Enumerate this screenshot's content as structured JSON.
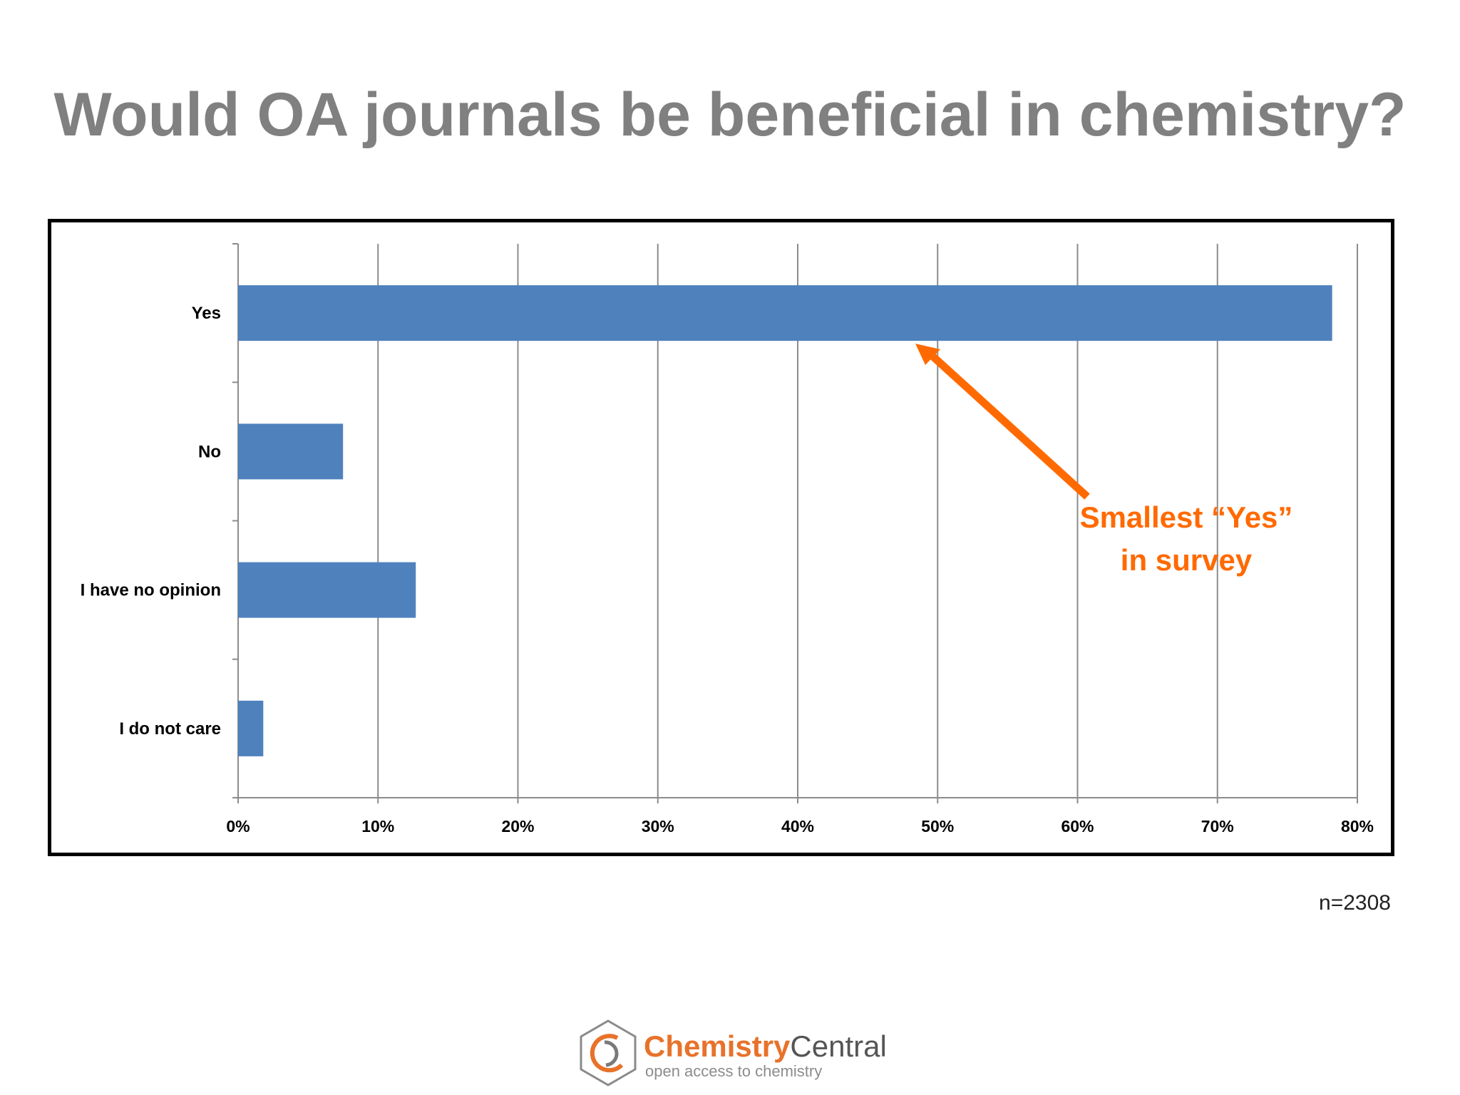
{
  "slide": {
    "title": "Would OA journals be beneficial in chemistry?",
    "sample_size": "n=2308"
  },
  "annotation": {
    "line1": "Smallest “Yes”",
    "line2": "in survey",
    "color": "#ff6a00"
  },
  "logo": {
    "name_part1": "Chemistry",
    "name_part2": "Central",
    "tagline": "open access to chemistry"
  },
  "chart_data": {
    "type": "bar",
    "orientation": "horizontal",
    "categories": [
      "Yes",
      "No",
      "I have no opinion",
      "I do not care"
    ],
    "values": [
      78.2,
      7.5,
      12.7,
      1.8
    ],
    "xlim": [
      0,
      80
    ],
    "x_ticks": [
      "0%",
      "10%",
      "20%",
      "30%",
      "40%",
      "50%",
      "60%",
      "70%",
      "80%"
    ],
    "grid": true,
    "bar_color": "#4f81bd"
  }
}
